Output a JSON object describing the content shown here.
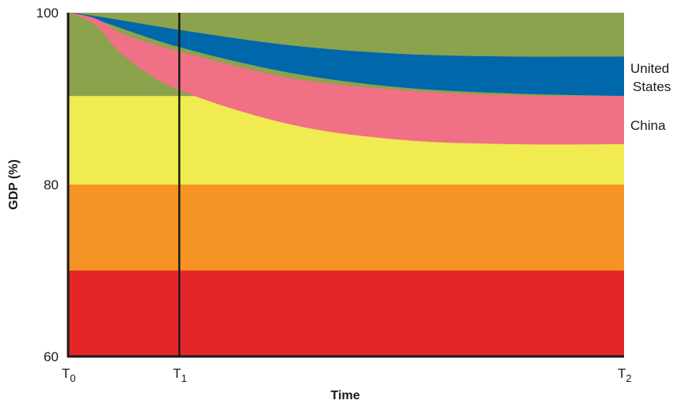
{
  "chart_data": {
    "type": "area",
    "title": "",
    "xlabel": "Time",
    "ylabel": "GDP (%)",
    "ylim": [
      60,
      100
    ],
    "xlim": [
      0,
      1
    ],
    "y_ticks": [
      {
        "value": 100,
        "label": "100"
      },
      {
        "value": 80,
        "label": "80"
      },
      {
        "value": 60,
        "label": "60"
      }
    ],
    "x_ticks": [
      {
        "value": 0,
        "main": "T",
        "sub": "0"
      },
      {
        "value": 0.2,
        "main": "T",
        "sub": "1"
      },
      {
        "value": 1,
        "main": "T",
        "sub": "2"
      }
    ],
    "vertical_lines": [
      0.2
    ],
    "bands": [
      {
        "from": 60,
        "to": 70,
        "color": "#e52628"
      },
      {
        "from": 70,
        "to": 80,
        "color": "#f59425"
      },
      {
        "from": 80,
        "to": 90.3,
        "color": "#f0eb50"
      },
      {
        "from": 90.3,
        "to": 100,
        "color": "#8ba34c"
      }
    ],
    "series": [
      {
        "label_lines": [
          "United",
          "States"
        ],
        "color": "#0067ab",
        "x": [
          0,
          0.05,
          0.2,
          0.4,
          0.6,
          0.8,
          1
        ],
        "upper": [
          100,
          99.6,
          98.0,
          96.2,
          95.2,
          94.9,
          94.9
        ],
        "lower": [
          100,
          99.2,
          96.0,
          93.0,
          91.3,
          90.6,
          90.3
        ]
      },
      {
        "label_lines": [
          "China"
        ],
        "color": "#f07085",
        "x": [
          0,
          0.05,
          0.1,
          0.2,
          0.4,
          0.6,
          0.8,
          1
        ],
        "upper": [
          100,
          99.3,
          97.5,
          95.5,
          92.4,
          91.0,
          90.4,
          90.3
        ],
        "lower": [
          100,
          98.5,
          95.0,
          91.0,
          87.0,
          85.2,
          84.7,
          84.7
        ]
      }
    ]
  }
}
